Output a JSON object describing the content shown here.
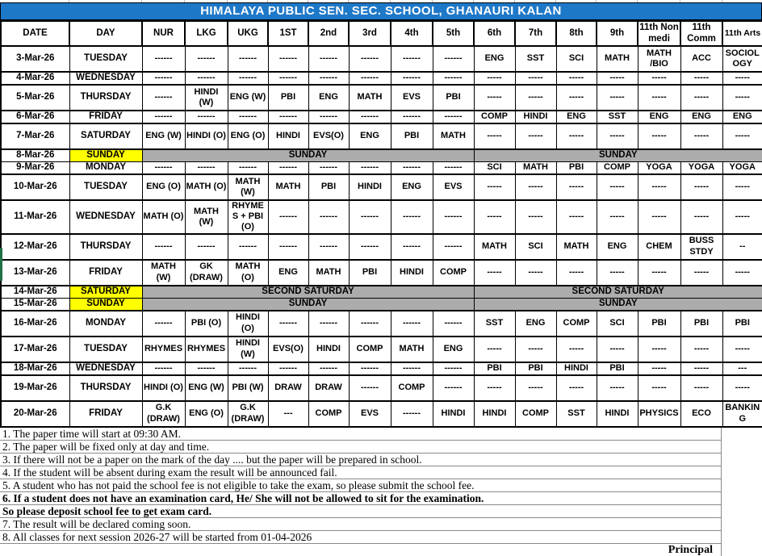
{
  "title": "HIMALAYA PUBLIC SEN. SEC. SCHOOL, GHANAURI KALAN",
  "colors": {
    "header_bg": "#1E78C8",
    "header_text": "#FFFFFF",
    "holiday_day_bg": "#FFFF00",
    "holiday_band_bg": "#ACACAC"
  },
  "columns": [
    "DATE",
    "DAY",
    "NUR",
    "LKG",
    "UKG",
    "1ST",
    "2nd",
    "3rd",
    "4th",
    "5th",
    "6th",
    "7th",
    "8th",
    "9th",
    "11th Non medi",
    "11th Comm",
    "11th Arts"
  ],
  "rows": [
    {
      "date": "3-Mar-26",
      "day": "TUESDAY",
      "cells": [
        "------",
        "------",
        "------",
        "------",
        "------",
        "------",
        "------",
        "------",
        "ENG",
        "SST",
        "SCI",
        "MATH",
        "MATH /BIO",
        "ACC",
        "SOCIOLOGY"
      ]
    },
    {
      "date": "4-Mar-26",
      "day": "WEDNESDAY",
      "cells": [
        "------",
        "------",
        "------",
        "------",
        "------",
        "------",
        "------",
        "------",
        "-----",
        "-----",
        "-----",
        "-----",
        "-----",
        "-----",
        "-----"
      ]
    },
    {
      "date": "5-Mar-26",
      "day": "THURSDAY",
      "cells": [
        "------",
        "HINDI (W)",
        "ENG (W)",
        "PBI",
        "ENG",
        "MATH",
        "EVS",
        "PBI",
        "-----",
        "-----",
        "-----",
        "-----",
        "-----",
        "-----",
        "-----"
      ]
    },
    {
      "date": "6-Mar-26",
      "day": "FRIDAY",
      "cells": [
        "------",
        "------",
        "------",
        "------",
        "------",
        "------",
        "------",
        "------",
        "COMP",
        "HINDI",
        "ENG",
        "SST",
        "ENG",
        "ENG",
        "ENG"
      ]
    },
    {
      "date": "7-Mar-26",
      "day": "SATURDAY",
      "cells": [
        "ENG (W)",
        "HINDI (O)",
        "ENG (O)",
        "HINDI",
        "EVS(O)",
        "ENG",
        "PBI",
        "MATH",
        "-----",
        "-----",
        "-----",
        "-----",
        "-----",
        "-----",
        "-----"
      ]
    },
    {
      "date": "8-Mar-26",
      "day": "SUNDAY",
      "holiday": {
        "left": "SUNDAY",
        "right": "SUNDAY"
      }
    },
    {
      "date": "9-Mar-26",
      "day": "MONDAY",
      "cells": [
        "------",
        "------",
        "------",
        "------",
        "------",
        "------",
        "------",
        "------",
        "SCI",
        "MATH",
        "PBI",
        "COMP",
        "YOGA",
        "YOGA",
        "YOGA"
      ]
    },
    {
      "date": "10-Mar-26",
      "day": "TUESDAY",
      "cells": [
        "ENG (O)",
        "MATH (O)",
        "MATH (W)",
        "MATH",
        "PBI",
        "HINDI",
        "ENG",
        "EVS",
        "-----",
        "-----",
        "-----",
        "-----",
        "-----",
        "-----",
        "-----"
      ]
    },
    {
      "date": "11-Mar-26",
      "day": "WEDNESDAY",
      "cells": [
        "MATH (O)",
        "MATH (W)",
        "RHYMES + PBI (O)",
        "------",
        "------",
        "------",
        "------",
        "------",
        "-----",
        "-----",
        "-----",
        "-----",
        "-----",
        "-----",
        "-----"
      ]
    },
    {
      "date": "12-Mar-26",
      "day": "THURSDAY",
      "cells": [
        "------",
        "------",
        "------",
        "------",
        "------",
        "------",
        "------",
        "------",
        "MATH",
        "SCI",
        "MATH",
        "ENG",
        "CHEM",
        "BUSS STDY",
        "--"
      ]
    },
    {
      "date": "13-Mar-26",
      "day": "FRIDAY",
      "cells": [
        "MATH (W)",
        "GK (DRAW)",
        "MATH (O)",
        "ENG",
        "MATH",
        "PBI",
        "HINDI",
        "COMP",
        "-----",
        "-----",
        "-----",
        "-----",
        "-----",
        "-----",
        "-----"
      ]
    },
    {
      "date": "14-Mar-26",
      "day": "SATURDAY",
      "holiday": {
        "left": "SECOND SATURDAY",
        "right": "SECOND SATURDAY"
      }
    },
    {
      "date": "15-Mar-26",
      "day": "SUNDAY",
      "holiday": {
        "left": "SUNDAY",
        "right": "SUNDAY"
      }
    },
    {
      "date": "16-Mar-26",
      "day": "MONDAY",
      "cells": [
        "------",
        "PBI (O)",
        "HINDI (O)",
        "------",
        "------",
        "------",
        "------",
        "------",
        "SST",
        "ENG",
        "COMP",
        "SCI",
        "PBI",
        "PBI",
        "PBI"
      ]
    },
    {
      "date": "17-Mar-26",
      "day": "TUESDAY",
      "cells": [
        "RHYMES",
        "RHYMES",
        "HINDI (W)",
        "EVS(O)",
        "HINDI",
        "COMP",
        "MATH",
        "ENG",
        "-----",
        "-----",
        "-----",
        "-----",
        "-----",
        "-----",
        "-----"
      ]
    },
    {
      "date": "18-Mar-26",
      "day": "WEDNESDAY",
      "cells": [
        "------",
        "------",
        "------",
        "------",
        "------",
        "------",
        "------",
        "------",
        "PBI",
        "PBI",
        "HINDI",
        "PBI",
        "-----",
        "-----",
        "---"
      ]
    },
    {
      "date": "19-Mar-26",
      "day": "THURSDAY",
      "cells": [
        "HINDI (O)",
        "ENG (W)",
        "PBI (W)",
        "DRAW",
        "DRAW",
        "------",
        "COMP",
        "------",
        "-----",
        "-----",
        "-----",
        "-----",
        "-----",
        "-----",
        "-----"
      ]
    },
    {
      "date": "20-Mar-26",
      "day": "FRIDAY",
      "cells": [
        "G.K (DRAW)",
        "ENG (O)",
        "G.K (DRAW)",
        "---",
        "COMP",
        "EVS",
        "------",
        "HINDI",
        "HINDI",
        "COMP",
        "SST",
        "HINDI",
        "PHYSICS",
        "ECO",
        "BANKING"
      ]
    }
  ],
  "notes": [
    {
      "text": "1. The paper time will start at 09:30 AM.",
      "bold": false
    },
    {
      "text": "2. The paper will be fixed only at day and time.",
      "bold": false
    },
    {
      "text": "3. If there will not be a paper on the mark of the day .... but the paper will be prepared in school.",
      "bold": false
    },
    {
      "text": "4. If the student will be absent during exam the result will be announced fail.",
      "bold": false
    },
    {
      "text": "5. A student who has not paid the school fee is not eligible to take the exam, so please submit the school fee.",
      "bold": false
    },
    {
      "text": "6. If a student does not have an examination card, He/ She will not be allowed to sit for the examination.",
      "bold": true
    },
    {
      "text": "So please deposit school fee to get exam card.",
      "bold": true
    },
    {
      "text": "7. The result will be declared coming soon.",
      "bold": false
    },
    {
      "text": "8. All classes  for next session 2026-27 will  be started from 01-04-2026",
      "bold": false
    }
  ],
  "principal_label": "Principal"
}
